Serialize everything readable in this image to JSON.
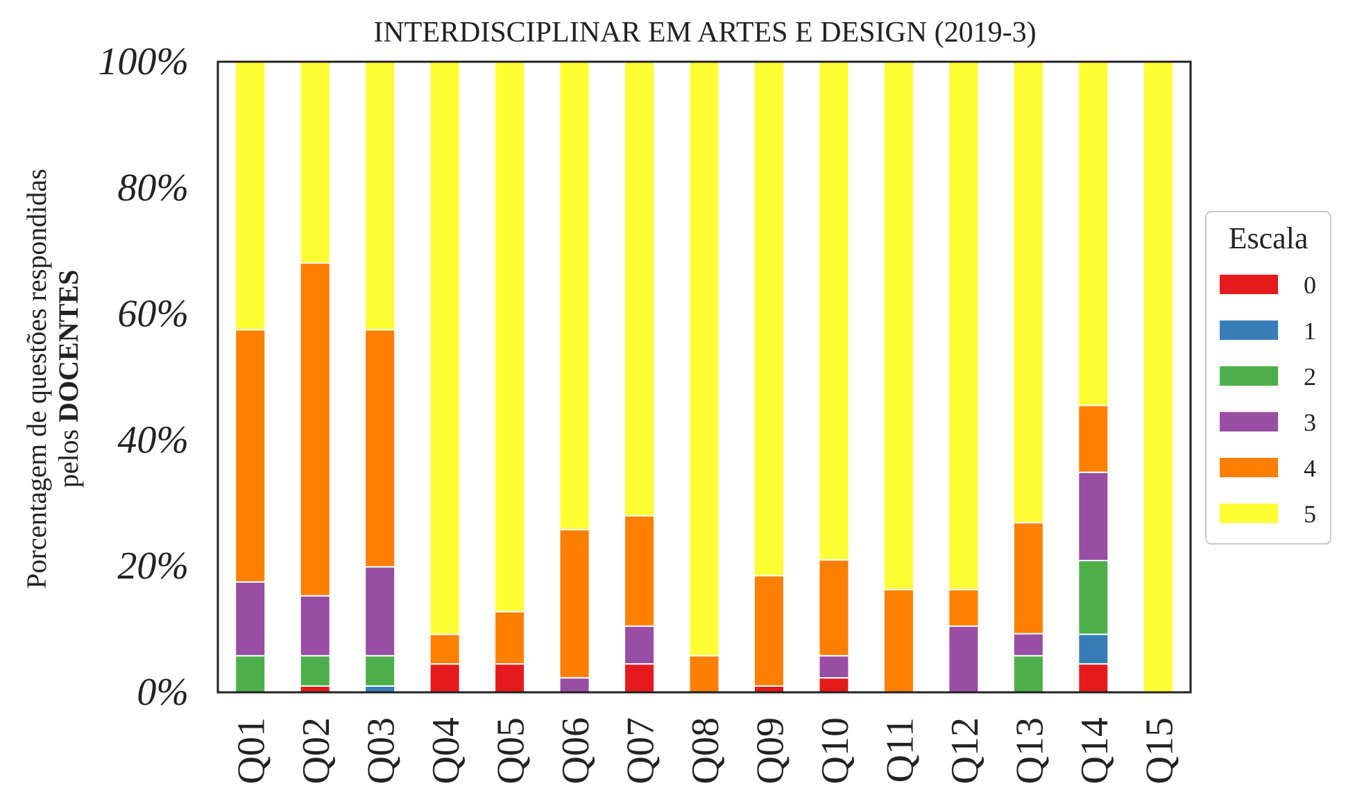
{
  "chart_data": {
    "type": "bar",
    "stacked": true,
    "title": "INTERDISCIPLINAR EM ARTES E DESIGN (2019-3)",
    "ylabel_line1": "Porcentagem de questões respondidas",
    "ylabel_line2_prefix": "pelos ",
    "ylabel_line2_strong": "DOCENTES",
    "ylim": [
      0,
      100
    ],
    "yticks": [
      "0%",
      "20%",
      "40%",
      "60%",
      "80%",
      "100%"
    ],
    "categories": [
      "Q01",
      "Q02",
      "Q03",
      "Q04",
      "Q05",
      "Q06",
      "Q07",
      "Q08",
      "Q09",
      "Q10",
      "Q11",
      "Q12",
      "Q13",
      "Q14",
      "Q15"
    ],
    "legend": {
      "title": "Escala",
      "placement": "center-right"
    },
    "series": [
      {
        "name": "0",
        "color": "#e41a1c",
        "values": [
          0,
          1,
          0,
          4.5,
          4.5,
          0,
          4.5,
          0,
          1,
          2.3,
          0,
          0,
          0,
          4.5,
          0
        ]
      },
      {
        "name": "1",
        "color": "#377eb8",
        "values": [
          0,
          0,
          1,
          0,
          0,
          0,
          0,
          0,
          0,
          0,
          0,
          0,
          0,
          4.7,
          0
        ]
      },
      {
        "name": "2",
        "color": "#4daf4a",
        "values": [
          5.8,
          4.8,
          4.8,
          0,
          0,
          0,
          0,
          0,
          0,
          0,
          0,
          0,
          5.8,
          11.7,
          0
        ]
      },
      {
        "name": "3",
        "color": "#984ea3",
        "values": [
          11.7,
          9.5,
          14.1,
          0,
          0,
          2.3,
          6,
          0,
          0,
          3.5,
          0,
          10.5,
          3.5,
          14,
          0
        ]
      },
      {
        "name": "4",
        "color": "#ff7f00",
        "values": [
          40,
          52.8,
          37.6,
          4.7,
          8.3,
          23.5,
          17.5,
          5.8,
          17.5,
          15.2,
          16.3,
          5.8,
          17.6,
          10.6,
          0
        ]
      },
      {
        "name": "5",
        "color": "#ffff33",
        "values": [
          42.5,
          31.9,
          42.5,
          90.8,
          87.2,
          74.2,
          72,
          94.2,
          81.5,
          79,
          83.7,
          83.7,
          73.1,
          54.5,
          100
        ]
      }
    ]
  }
}
